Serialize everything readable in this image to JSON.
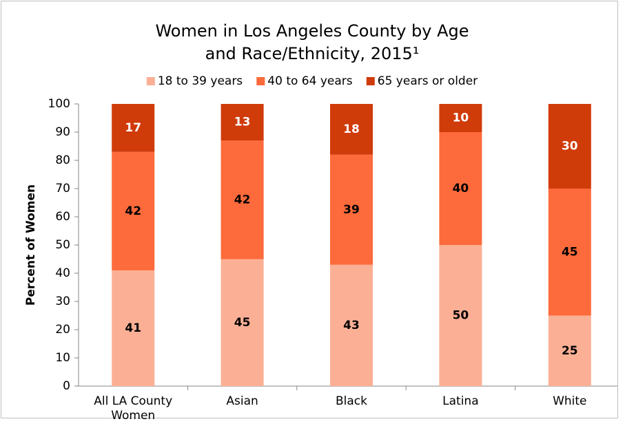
{
  "chart_data": {
    "type": "stacked_bar",
    "title": [
      "Women in Los Angeles County by Age",
      "and Race/Ethnicity, 2015¹"
    ],
    "y_label": "Percent of Women",
    "categories": [
      "All LA County Women",
      "Asian",
      "Black",
      "Latina",
      "White"
    ],
    "series": [
      {
        "name": "18 to 39 years",
        "color": "#fbb095",
        "label_color": "#000000",
        "values": [
          41,
          45,
          43,
          50,
          25
        ]
      },
      {
        "name": "40 to 64 years",
        "color": "#fd6a3b",
        "label_color": "#000000",
        "values": [
          42,
          42,
          39,
          40,
          45
        ]
      },
      {
        "name": "65 years or older",
        "color": "#d03b0a",
        "label_color": "#ffffff",
        "values": [
          17,
          13,
          18,
          10,
          30
        ]
      }
    ],
    "ylim": [
      0,
      100
    ],
    "yticks": [
      0,
      10,
      20,
      30,
      40,
      50,
      60,
      70,
      80,
      90,
      100
    ],
    "legend": "top",
    "grid": false
  }
}
